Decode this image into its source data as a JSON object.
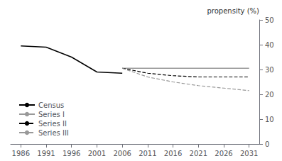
{
  "chart_data": {
    "type": "line",
    "ylabel": "propensity (%)",
    "x": [
      1986,
      1991,
      1996,
      2001,
      2006,
      2011,
      2016,
      2021,
      2026,
      2031
    ],
    "series": [
      {
        "name": "Census",
        "color": "#000000",
        "line_style": "solid",
        "values": [
          39.5,
          39.0,
          35.0,
          29.0,
          28.5,
          null,
          null,
          null,
          null,
          null
        ]
      },
      {
        "name": "Series I",
        "color": "#999999",
        "line_style": "solid",
        "values": [
          null,
          null,
          null,
          null,
          30.5,
          30.5,
          30.5,
          30.5,
          30.5,
          30.5
        ]
      },
      {
        "name": "Series II",
        "color": "#000000",
        "line_style": "dashed",
        "values": [
          null,
          null,
          null,
          null,
          30.5,
          28.5,
          27.5,
          27.0,
          27.0,
          27.0
        ]
      },
      {
        "name": "Series III",
        "color": "#999999",
        "line_style": "dashed",
        "values": [
          null,
          null,
          null,
          null,
          30.5,
          27.0,
          25.0,
          23.5,
          22.5,
          21.5
        ]
      }
    ],
    "xlim": [
      1984,
      2033
    ],
    "xticks": [
      1986,
      1991,
      1996,
      2001,
      2006,
      2011,
      2016,
      2021,
      2026,
      2031
    ],
    "ylim": [
      0,
      50
    ],
    "yticks": [
      0,
      10,
      20,
      30,
      40,
      50
    ],
    "grid": false,
    "legend": "lower left"
  }
}
